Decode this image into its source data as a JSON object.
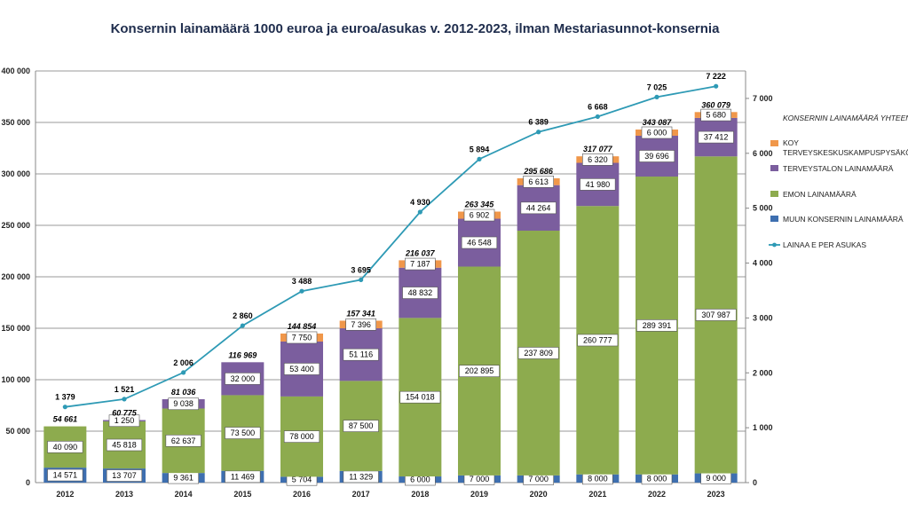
{
  "chart_data": {
    "type": "stacked-bar+line",
    "title": "Konsernin lainamäärä 1000 euroa ja euroa/asukas v. 2012-2023, ilman Mestariasunnot-konsernia",
    "categories": [
      "2012",
      "2013",
      "2014",
      "2015",
      "2016",
      "2017",
      "2018",
      "2019",
      "2020",
      "2021",
      "2022",
      "2023"
    ],
    "series": [
      {
        "name": "MUUN KONSERNIN LAINAMÄÄRÄ",
        "color": "#3e6fb0",
        "values": [
          14571,
          13707,
          9361,
          11469,
          5704,
          11329,
          6000,
          7000,
          7000,
          8000,
          8000,
          9000
        ],
        "labels": [
          "14 571",
          "13 707",
          "9 361",
          "11 469",
          "5 704",
          "11 329",
          "6 000",
          "7 000",
          "7 000",
          "8 000",
          "8 000",
          "9 000"
        ]
      },
      {
        "name": "EMON LAINAMÄÄRÄ",
        "color": "#8dab4e",
        "values": [
          40090,
          45818,
          62637,
          73500,
          78000,
          87500,
          154018,
          202895,
          237809,
          260777,
          289391,
          307987
        ],
        "labels": [
          "40 090",
          "45 818",
          "62 637",
          "73 500",
          "78 000",
          "87 500",
          "154 018",
          "202 895",
          "237 809",
          "260 777",
          "289 391",
          "307 987"
        ]
      },
      {
        "name": "TERVEYSTALON LAINAMÄÄRÄ",
        "color": "#7b5e9e",
        "values": [
          0,
          1250,
          9038,
          32000,
          53400,
          51116,
          48832,
          46548,
          44264,
          41980,
          39696,
          37412
        ],
        "labels": [
          "",
          "1 250",
          "9 038",
          "32 000",
          "53 400",
          "51 116",
          "48 832",
          "46 548",
          "44 264",
          "41 980",
          "39 696",
          "37 412"
        ]
      },
      {
        "name": "KOY TERVEYSKESKUSKAMPUSPYSÄKÖINTI",
        "color": "#f0974a",
        "values": [
          0,
          0,
          0,
          0,
          7750,
          7396,
          7187,
          6902,
          6613,
          6320,
          6000,
          5680
        ],
        "labels": [
          "",
          "",
          "",
          "",
          "7 750",
          "7 396",
          "7 187",
          "6 902",
          "6 613",
          "6 320",
          "6 000",
          "5 680"
        ]
      }
    ],
    "totals": {
      "name": "KONSERNIN LAINAMÄÄRÄ YHTEENSÄ",
      "labels": [
        "54 661",
        "60 775",
        "81 036",
        "116 969",
        "144 854",
        "157 341",
        "216 037",
        "263 345",
        "295 686",
        "317 077",
        "343 087",
        "360 079"
      ]
    },
    "line": {
      "name": "LAINAA E PER ASUKAS",
      "color": "#2e9ab5",
      "values": [
        1379,
        1521,
        2006,
        2860,
        3488,
        3695,
        4930,
        5894,
        6389,
        6668,
        7025,
        7222
      ],
      "labels": [
        "1 379",
        "1 521",
        "2 006",
        "2 860",
        "3 488",
        "3 695",
        "4 930",
        "5 894",
        "6 389",
        "6 668",
        "7 025",
        "7 222"
      ]
    },
    "y_left": {
      "min": 0,
      "max": 400000,
      "step": 50000,
      "ticks": [
        "0",
        "50 000",
        "100 000",
        "150 000",
        "200 000",
        "250 000",
        "300 000",
        "350 000",
        "400 000"
      ]
    },
    "y_right": {
      "min": 0,
      "max": 7000,
      "step": 1000,
      "ticks": [
        "0",
        "1 000",
        "2 000",
        "3 000",
        "4 000",
        "5 000",
        "6 000",
        "7 000"
      ]
    },
    "legend": [
      {
        "label": "KONSERNIN LAINAMÄÄRÄ YHTEENSÄ",
        "kind": "text"
      },
      {
        "label": "KOY TERVEYSKESKUSKAMPUSPYSÄKÖINTI",
        "kind": "box",
        "color": "#f0974a"
      },
      {
        "label": "TERVEYSTALON LAINAMÄÄRÄ",
        "kind": "box",
        "color": "#7b5e9e"
      },
      {
        "label": "EMON LAINAMÄÄRÄ",
        "kind": "box",
        "color": "#8dab4e"
      },
      {
        "label": "MUUN KONSERNIN LAINAMÄÄRÄ",
        "kind": "box",
        "color": "#3e6fb0"
      },
      {
        "label": "LAINAA E PER ASUKAS",
        "kind": "line",
        "color": "#2e9ab5"
      }
    ],
    "legend_position": "right",
    "grid": true
  }
}
